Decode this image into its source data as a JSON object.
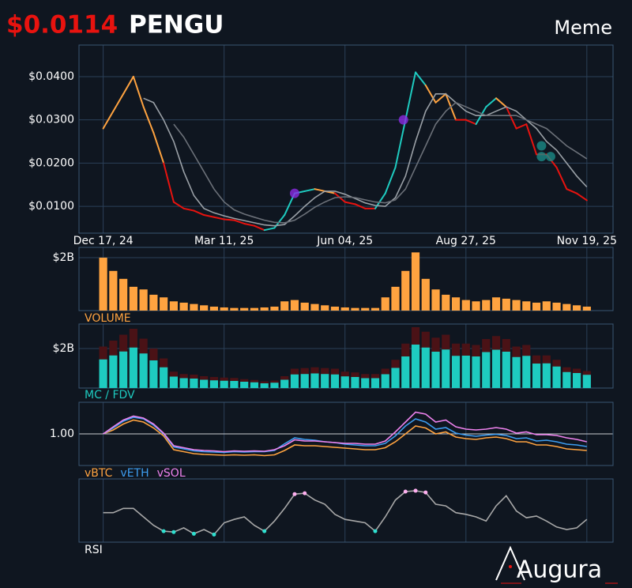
{
  "header": {
    "price": "$0.0114",
    "symbol": "PENGU",
    "category": "Meme"
  },
  "logo": "Augura",
  "chart_data": [
    {
      "type": "line",
      "xlim": [
        -2.4,
        50.6
      ],
      "ylim": [
        0.0038,
        0.0473
      ],
      "xticks": [
        {
          "value": 0,
          "label": "Dec 17, 24"
        },
        {
          "value": 12,
          "label": "Mar 11, 25"
        },
        {
          "value": 24,
          "label": "Jun 04, 25"
        },
        {
          "value": 36,
          "label": "Aug 27, 25"
        },
        {
          "value": 48,
          "label": "Nov 19, 25"
        }
      ],
      "yticks": [
        {
          "value": 0.04,
          "label": "$0.0400"
        },
        {
          "value": 0.03,
          "label": "$0.0300"
        },
        {
          "value": 0.02,
          "label": "$0.0200"
        },
        {
          "value": 0.01,
          "label": "$0.0100"
        }
      ],
      "grid": true,
      "series": [
        {
          "values": [
            0.028,
            0.032,
            0.036,
            0.04,
            0.033,
            0.027,
            0.02,
            0.011,
            0.0095,
            0.009,
            0.008,
            0.0075,
            0.007,
            0.0068,
            0.006,
            0.0055,
            0.0045,
            0.005,
            0.008,
            0.013,
            0.0135,
            0.014,
            0.0135,
            0.013,
            0.011,
            0.0105,
            0.0095,
            0.0095,
            0.013,
            0.019,
            0.03,
            0.041,
            0.038,
            0.034,
            0.036,
            0.03,
            0.03,
            0.029,
            0.033,
            0.035,
            0.033,
            0.028,
            0.029,
            0.022,
            0.022,
            0.019,
            0.014,
            0.013,
            0.0114
          ],
          "segment_colors": [
            "#ffa340",
            "#ffa340",
            "#ffa340",
            "#ffa340",
            "#ffa340",
            "#ffa340",
            "#e8130f",
            "#e8130f",
            "#e8130f",
            "#e8130f",
            "#e8130f",
            "#e8130f",
            "#e8130f",
            "#e8130f",
            "#e8130f",
            "#e8130f",
            "#1ecbc0",
            "#1ecbc0",
            "#1ecbc0",
            "#1ecbc0",
            "#1ecbc0",
            "#ffa340",
            "#ffa340",
            "#e8130f",
            "#e8130f",
            "#e8130f",
            "#e8130f",
            "#1ecbc0",
            "#1ecbc0",
            "#1ecbc0",
            "#1ecbc0",
            "#1ecbc0",
            "#ffa340",
            "#ffa340",
            "#ffa340",
            "#e8130f",
            "#e8130f",
            "#1ecbc0",
            "#1ecbc0",
            "#ffa340",
            "#e8130f",
            "#e8130f",
            "#e8130f",
            "#e8130f",
            "#e8130f",
            "#e8130f",
            "#e8130f",
            "#e8130f"
          ]
        },
        {
          "color": "#9aa0a6",
          "values": [
            null,
            null,
            null,
            null,
            0.035,
            0.034,
            0.03,
            0.025,
            0.018,
            0.0125,
            0.0095,
            0.0085,
            0.0078,
            0.0072,
            0.0067,
            0.0062,
            0.0057,
            0.0055,
            0.0058,
            0.0078,
            0.01,
            0.012,
            0.0135,
            0.0135,
            0.0128,
            0.0118,
            0.0108,
            0.0102,
            0.01,
            0.012,
            0.017,
            0.025,
            0.032,
            0.036,
            0.036,
            0.034,
            0.032,
            0.031,
            0.031,
            0.032,
            0.033,
            0.032,
            0.03,
            0.028,
            0.025,
            0.023,
            0.02,
            0.017,
            0.0145
          ]
        },
        {
          "color": "#6b7078",
          "values": [
            null,
            null,
            null,
            null,
            null,
            null,
            null,
            0.029,
            0.026,
            0.022,
            0.018,
            0.014,
            0.011,
            0.0092,
            0.0082,
            0.0075,
            0.0068,
            0.0063,
            0.0062,
            0.0068,
            0.0082,
            0.0098,
            0.011,
            0.012,
            0.0122,
            0.012,
            0.0115,
            0.011,
            0.0108,
            0.0115,
            0.014,
            0.019,
            0.024,
            0.029,
            0.032,
            0.034,
            0.033,
            0.032,
            0.031,
            0.031,
            0.031,
            0.031,
            0.03,
            0.029,
            0.028,
            0.026,
            0.024,
            0.0225,
            0.021
          ]
        }
      ],
      "signals": [
        {
          "index": 19,
          "value": 0.013,
          "color": "#8a2be2"
        },
        {
          "index": 29.8,
          "value": 0.03,
          "color": "#8a2be2"
        },
        {
          "index": 43.5,
          "value": 0.024,
          "color": "#1a8a86"
        },
        {
          "index": 43.5,
          "value": 0.0215,
          "color": "#1a8a86"
        },
        {
          "index": 44.4,
          "value": 0.0215,
          "color": "#1a8a86"
        }
      ]
    },
    {
      "type": "bar",
      "label": "VOLUME",
      "ylim": [
        0,
        2.39
      ],
      "yticks": [
        {
          "value": 2,
          "label": "$2B"
        }
      ],
      "series": [
        {
          "color": "#ffa340",
          "values": [
            2.0,
            1.5,
            1.2,
            0.9,
            0.8,
            0.6,
            0.5,
            0.35,
            0.3,
            0.25,
            0.2,
            0.15,
            0.12,
            0.1,
            0.1,
            0.1,
            0.12,
            0.15,
            0.35,
            0.4,
            0.3,
            0.25,
            0.2,
            0.15,
            0.12,
            0.1,
            0.1,
            0.1,
            0.5,
            0.9,
            1.5,
            2.2,
            1.2,
            0.8,
            0.6,
            0.5,
            0.4,
            0.35,
            0.4,
            0.5,
            0.45,
            0.4,
            0.35,
            0.3,
            0.35,
            0.3,
            0.25,
            0.2,
            0.15
          ]
        }
      ]
    },
    {
      "type": "bar",
      "label": "MC / FDV",
      "ylim": [
        0,
        3.24
      ],
      "yticks": [
        {
          "value": 2,
          "label": "$2B"
        }
      ],
      "series": [
        {
          "color": "#4a1216",
          "values": [
            2.1,
            2.4,
            2.7,
            3.0,
            2.5,
            2.0,
            1.5,
            0.83,
            0.71,
            0.68,
            0.6,
            0.56,
            0.53,
            0.51,
            0.45,
            0.41,
            0.34,
            0.38,
            0.6,
            0.98,
            1.01,
            1.05,
            1.01,
            0.98,
            0.83,
            0.79,
            0.71,
            0.71,
            0.98,
            1.43,
            2.25,
            3.08,
            2.85,
            2.55,
            2.7,
            2.25,
            2.25,
            2.18,
            2.48,
            2.63,
            2.48,
            2.1,
            2.18,
            1.65,
            1.65,
            1.43,
            1.05,
            0.98,
            0.86
          ]
        },
        {
          "color": "#1ecbc0",
          "values": [
            1.45,
            1.65,
            1.85,
            2.05,
            1.75,
            1.4,
            1.05,
            0.58,
            0.5,
            0.48,
            0.42,
            0.39,
            0.37,
            0.36,
            0.32,
            0.29,
            0.24,
            0.27,
            0.42,
            0.69,
            0.71,
            0.74,
            0.71,
            0.69,
            0.59,
            0.56,
            0.5,
            0.5,
            0.7,
            1.02,
            1.6,
            2.2,
            2.05,
            1.84,
            1.95,
            1.63,
            1.64,
            1.6,
            1.82,
            1.94,
            1.84,
            1.57,
            1.63,
            1.24,
            1.25,
            1.09,
            0.81,
            0.76,
            0.67
          ]
        }
      ]
    },
    {
      "type": "line",
      "ylim": [
        0.2,
        1.8
      ],
      "yticks": [
        {
          "value": 1,
          "label": "1.00"
        }
      ],
      "series": [
        {
          "name": "vBTC",
          "color": "#ffa340",
          "values": [
            1.0,
            1.1,
            1.25,
            1.35,
            1.3,
            1.15,
            0.95,
            0.6,
            0.55,
            0.5,
            0.48,
            0.47,
            0.46,
            0.47,
            0.46,
            0.47,
            0.45,
            0.47,
            0.58,
            0.72,
            0.7,
            0.7,
            0.68,
            0.66,
            0.64,
            0.62,
            0.6,
            0.6,
            0.65,
            0.8,
            1.0,
            1.2,
            1.15,
            1.0,
            1.05,
            0.92,
            0.88,
            0.86,
            0.9,
            0.92,
            0.88,
            0.8,
            0.8,
            0.72,
            0.72,
            0.68,
            0.62,
            0.6,
            0.58
          ]
        },
        {
          "name": "vETH",
          "color": "#3d9df0",
          "values": [
            1.0,
            1.15,
            1.32,
            1.42,
            1.38,
            1.22,
            1.0,
            0.67,
            0.62,
            0.57,
            0.55,
            0.54,
            0.53,
            0.55,
            0.54,
            0.55,
            0.55,
            0.58,
            0.75,
            0.9,
            0.86,
            0.84,
            0.8,
            0.78,
            0.74,
            0.72,
            0.7,
            0.7,
            0.76,
            0.95,
            1.2,
            1.38,
            1.3,
            1.12,
            1.16,
            1.02,
            0.97,
            0.94,
            0.97,
            0.99,
            0.96,
            0.88,
            0.9,
            0.82,
            0.84,
            0.8,
            0.74,
            0.72,
            0.68
          ]
        },
        {
          "name": "vSOL",
          "color": "#ee82ee",
          "values": [
            1.0,
            1.18,
            1.35,
            1.45,
            1.4,
            1.25,
            1.02,
            0.7,
            0.65,
            0.6,
            0.58,
            0.57,
            0.55,
            0.57,
            0.56,
            0.57,
            0.56,
            0.6,
            0.7,
            0.85,
            0.82,
            0.82,
            0.8,
            0.78,
            0.76,
            0.76,
            0.74,
            0.74,
            0.82,
            1.05,
            1.3,
            1.55,
            1.5,
            1.3,
            1.35,
            1.18,
            1.12,
            1.1,
            1.12,
            1.16,
            1.12,
            1.02,
            1.05,
            0.98,
            0.98,
            0.96,
            0.9,
            0.86,
            0.8
          ]
        }
      ]
    },
    {
      "type": "line",
      "label": "RSI",
      "ylim": [
        15,
        90
      ],
      "overbought": 70,
      "oversold": 30,
      "overbought_color": "#ffb0f0",
      "oversold_color": "#2ee0d0",
      "series": [
        {
          "color": "#a8a8a8",
          "values": [
            50,
            50,
            55,
            55,
            45,
            35,
            28,
            27,
            32,
            25,
            30,
            24,
            38,
            42,
            45,
            35,
            28,
            40,
            55,
            72,
            73,
            65,
            60,
            48,
            42,
            40,
            38,
            28,
            45,
            65,
            75,
            76,
            74,
            60,
            58,
            50,
            48,
            45,
            40,
            58,
            70,
            52,
            44,
            46,
            40,
            33,
            30,
            32,
            42
          ]
        }
      ]
    }
  ]
}
